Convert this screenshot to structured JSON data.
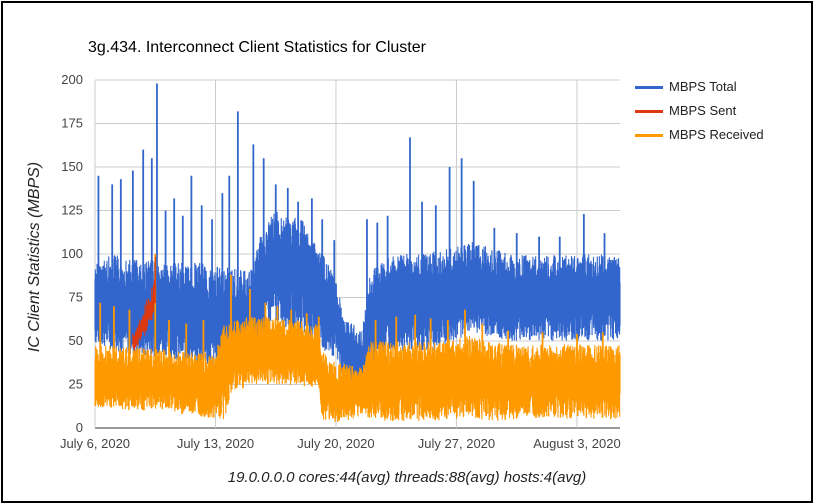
{
  "chart_data": {
    "type": "line",
    "title": "3g.434. Interconnect Client Statistics for Cluster",
    "ylabel": "IC Client Statistics (MBPS)",
    "xlabel": "",
    "ylim": [
      0,
      200
    ],
    "yticks": [
      "0",
      "25",
      "50",
      "75",
      "100",
      "125",
      "150",
      "175",
      "200"
    ],
    "xlim": [
      0,
      30.5
    ],
    "xticks": [
      {
        "label": "July 6, 2020",
        "day": 0
      },
      {
        "label": "July 13, 2020",
        "day": 7
      },
      {
        "label": "July 20, 2020",
        "day": 14
      },
      {
        "label": "July 27, 2020",
        "day": 21
      },
      {
        "label": "August 3, 2020",
        "day": 28
      }
    ],
    "legend_position": "right",
    "footer": "19.0.0.0.0 cores:44(avg) threads:88(avg) hosts:4(avg)",
    "series": [
      {
        "name": "MBPS Total",
        "color": "#3366cc",
        "band_days": [
          0,
          1,
          2,
          3,
          4,
          5,
          6,
          7,
          8,
          9,
          9.5,
          10,
          10.5,
          11,
          12,
          13,
          14,
          14.5,
          15,
          15.5,
          16,
          17,
          18,
          19,
          20,
          21,
          22,
          23,
          24,
          25,
          26,
          27,
          28,
          29,
          30,
          30.5
        ],
        "band_low": [
          48,
          45,
          42,
          40,
          42,
          38,
          36,
          34,
          35,
          34,
          45,
          58,
          60,
          58,
          55,
          45,
          40,
          28,
          26,
          22,
          35,
          45,
          44,
          44,
          45,
          50,
          55,
          52,
          50,
          50,
          50,
          50,
          50,
          50,
          50,
          50
        ],
        "band_high": [
          95,
          100,
          97,
          97,
          95,
          95,
          95,
          93,
          92,
          90,
          108,
          118,
          125,
          122,
          120,
          105,
          85,
          62,
          60,
          55,
          90,
          98,
          100,
          100,
          102,
          105,
          108,
          104,
          100,
          100,
          100,
          100,
          100,
          100,
          100,
          100
        ],
        "spikes": [
          {
            "day": 0.2,
            "value": 145
          },
          {
            "day": 1.0,
            "value": 140
          },
          {
            "day": 1.5,
            "value": 143
          },
          {
            "day": 2.2,
            "value": 148
          },
          {
            "day": 2.8,
            "value": 160
          },
          {
            "day": 3.3,
            "value": 155
          },
          {
            "day": 3.6,
            "value": 198
          },
          {
            "day": 4.1,
            "value": 125
          },
          {
            "day": 4.6,
            "value": 132
          },
          {
            "day": 5.1,
            "value": 122
          },
          {
            "day": 5.6,
            "value": 145
          },
          {
            "day": 6.2,
            "value": 128
          },
          {
            "day": 6.8,
            "value": 120
          },
          {
            "day": 7.4,
            "value": 135
          },
          {
            "day": 7.8,
            "value": 145
          },
          {
            "day": 8.3,
            "value": 182
          },
          {
            "day": 9.2,
            "value": 163
          },
          {
            "day": 9.8,
            "value": 155
          },
          {
            "day": 10.5,
            "value": 140
          },
          {
            "day": 11.2,
            "value": 138
          },
          {
            "day": 11.8,
            "value": 130
          },
          {
            "day": 12.6,
            "value": 132
          },
          {
            "day": 13.2,
            "value": 120
          },
          {
            "day": 13.9,
            "value": 108
          },
          {
            "day": 15.8,
            "value": 120
          },
          {
            "day": 16.4,
            "value": 118
          },
          {
            "day": 17.0,
            "value": 122
          },
          {
            "day": 18.3,
            "value": 167
          },
          {
            "day": 19.0,
            "value": 130
          },
          {
            "day": 19.8,
            "value": 128
          },
          {
            "day": 20.6,
            "value": 150
          },
          {
            "day": 21.3,
            "value": 155
          },
          {
            "day": 22.0,
            "value": 142
          },
          {
            "day": 23.2,
            "value": 115
          },
          {
            "day": 24.5,
            "value": 112
          },
          {
            "day": 25.8,
            "value": 110
          },
          {
            "day": 27.0,
            "value": 110
          },
          {
            "day": 28.4,
            "value": 123
          },
          {
            "day": 29.6,
            "value": 112
          }
        ]
      },
      {
        "name": "MBPS Sent",
        "color": "#dc3912",
        "band_days": [
          2.2,
          2.3,
          3.4,
          3.5
        ],
        "band_low": [
          45,
          44,
          60,
          70
        ],
        "band_high": [
          55,
          54,
          85,
          100
        ],
        "spikes": []
      },
      {
        "name": "MBPS Received",
        "color": "#ff9900",
        "band_days": [
          0,
          1,
          2,
          3,
          4,
          5,
          6,
          7,
          7.5,
          8,
          8.6,
          9,
          10,
          11,
          12,
          13,
          13.2,
          14,
          15,
          15.5,
          16,
          17,
          18,
          19,
          20,
          21,
          22,
          23,
          24,
          25,
          26,
          27,
          28,
          29,
          30,
          30.5
        ],
        "band_low": [
          12,
          11,
          10,
          10,
          10,
          8,
          7,
          5,
          5,
          22,
          22,
          25,
          25,
          25,
          24,
          23,
          4,
          3,
          4,
          8,
          5,
          4,
          4,
          4,
          4,
          5,
          5,
          4,
          4,
          5,
          5,
          5,
          5,
          5,
          5,
          5
        ],
        "band_high": [
          48,
          47,
          47,
          46,
          45,
          44,
          43,
          44,
          60,
          63,
          62,
          65,
          64,
          63,
          62,
          60,
          44,
          38,
          36,
          35,
          50,
          50,
          50,
          50,
          50,
          52,
          54,
          50,
          48,
          48,
          48,
          48,
          48,
          48,
          48,
          48
        ],
        "spikes": [
          {
            "day": 0.3,
            "value": 72
          },
          {
            "day": 1.1,
            "value": 70
          },
          {
            "day": 2.0,
            "value": 68
          },
          {
            "day": 3.5,
            "value": 100
          },
          {
            "day": 4.3,
            "value": 62
          },
          {
            "day": 5.3,
            "value": 60
          },
          {
            "day": 6.3,
            "value": 62
          },
          {
            "day": 7.9,
            "value": 88
          },
          {
            "day": 9.0,
            "value": 80
          },
          {
            "day": 9.9,
            "value": 72
          },
          {
            "day": 10.6,
            "value": 70
          },
          {
            "day": 11.4,
            "value": 68
          },
          {
            "day": 12.3,
            "value": 66
          },
          {
            "day": 13.0,
            "value": 64
          },
          {
            "day": 16.3,
            "value": 62
          },
          {
            "day": 17.5,
            "value": 64
          },
          {
            "day": 18.6,
            "value": 65
          },
          {
            "day": 19.5,
            "value": 63
          },
          {
            "day": 20.5,
            "value": 62
          },
          {
            "day": 21.5,
            "value": 68
          },
          {
            "day": 22.5,
            "value": 60
          },
          {
            "day": 24.0,
            "value": 56
          },
          {
            "day": 26.0,
            "value": 55
          },
          {
            "day": 28.0,
            "value": 54
          },
          {
            "day": 29.5,
            "value": 55
          }
        ]
      }
    ]
  }
}
